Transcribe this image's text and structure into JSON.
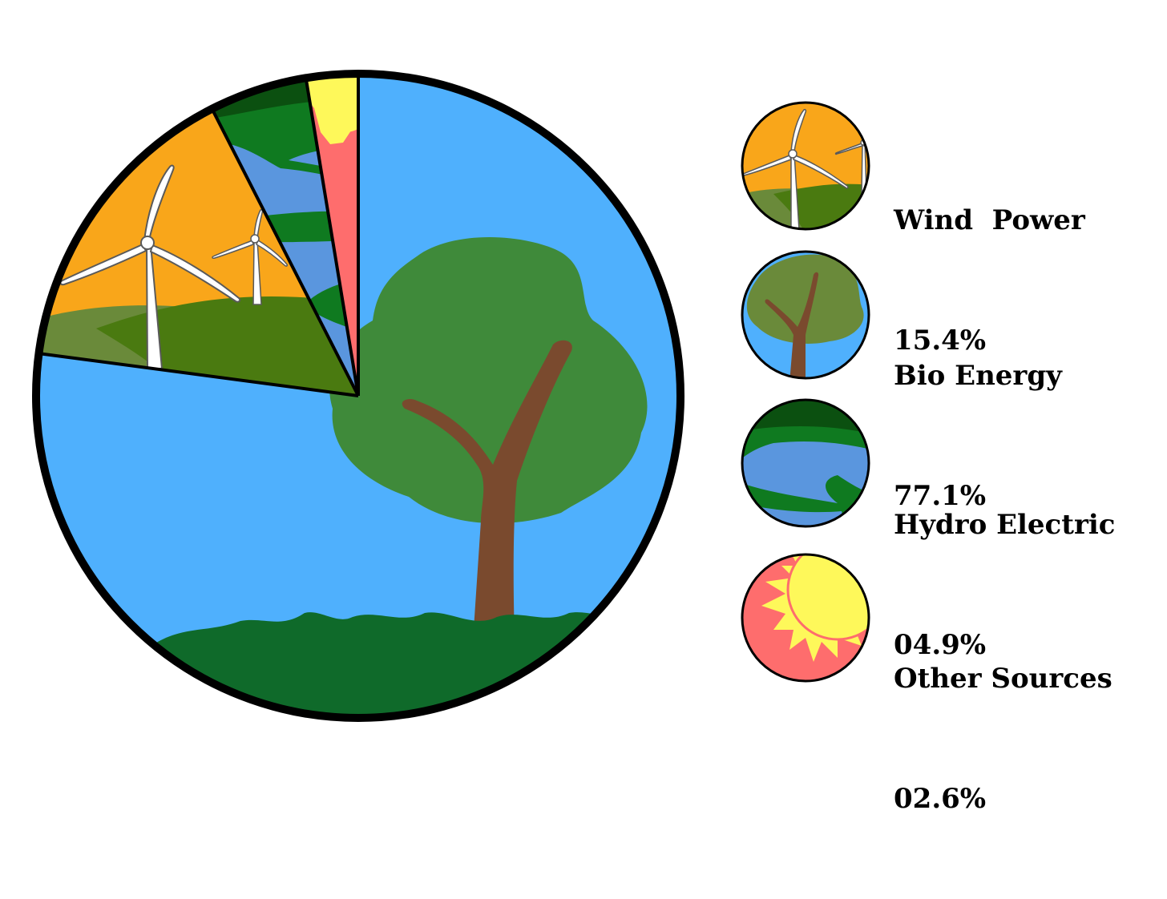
{
  "chart_data": {
    "type": "pie",
    "title": "",
    "series": [
      {
        "key": "wind",
        "name": "Wind  Power",
        "label": "15.4%",
        "value": 15.4,
        "color": "#f9a61a"
      },
      {
        "key": "bio",
        "name": "Bio Energy",
        "label": "77.1%",
        "value": 77.1,
        "color": "#4fb0fd"
      },
      {
        "key": "hydro",
        "name": "Hydro Electric",
        "label": "04.9%",
        "value": 4.9,
        "color": "#5a96de"
      },
      {
        "key": "other",
        "name": "Other Sources",
        "label": "02.6%",
        "value": 2.6,
        "color": "#fe6d6d"
      }
    ],
    "slice_order_clockwise_from_top": [
      "bio",
      "wind",
      "hydro",
      "other"
    ],
    "legend_position": "right",
    "palette": {
      "wind_sky": "#f9a61a",
      "wind_hill_light": "#6a8a3a",
      "wind_hill_dark": "#4a7a10",
      "bio_sky": "#4fb0fd",
      "bio_leaves": "#3f8a3a",
      "bio_trunk": "#7a4a2e",
      "bio_grass": "#0f6a2a",
      "hydro_water": "#5a96de",
      "hydro_green": "#0f7a20",
      "hydro_dark": "#0b5010",
      "other_red": "#fe6d6d",
      "other_sun": "#fef85a",
      "outline": "#000000"
    }
  },
  "legend": [
    {
      "key": "wind",
      "name_line": "Wind  Power",
      "value_line": "15.4%",
      "icon": "wind-turbine-icon"
    },
    {
      "key": "bio",
      "name_line": "Bio Energy",
      "value_line": "77.1%",
      "icon": "tree-icon"
    },
    {
      "key": "hydro",
      "name_line": "Hydro Electric",
      "value_line": "04.9%",
      "icon": "river-icon"
    },
    {
      "key": "other",
      "name_line": "Other Sources",
      "value_line": "02.6%",
      "icon": "sun-icon"
    }
  ]
}
